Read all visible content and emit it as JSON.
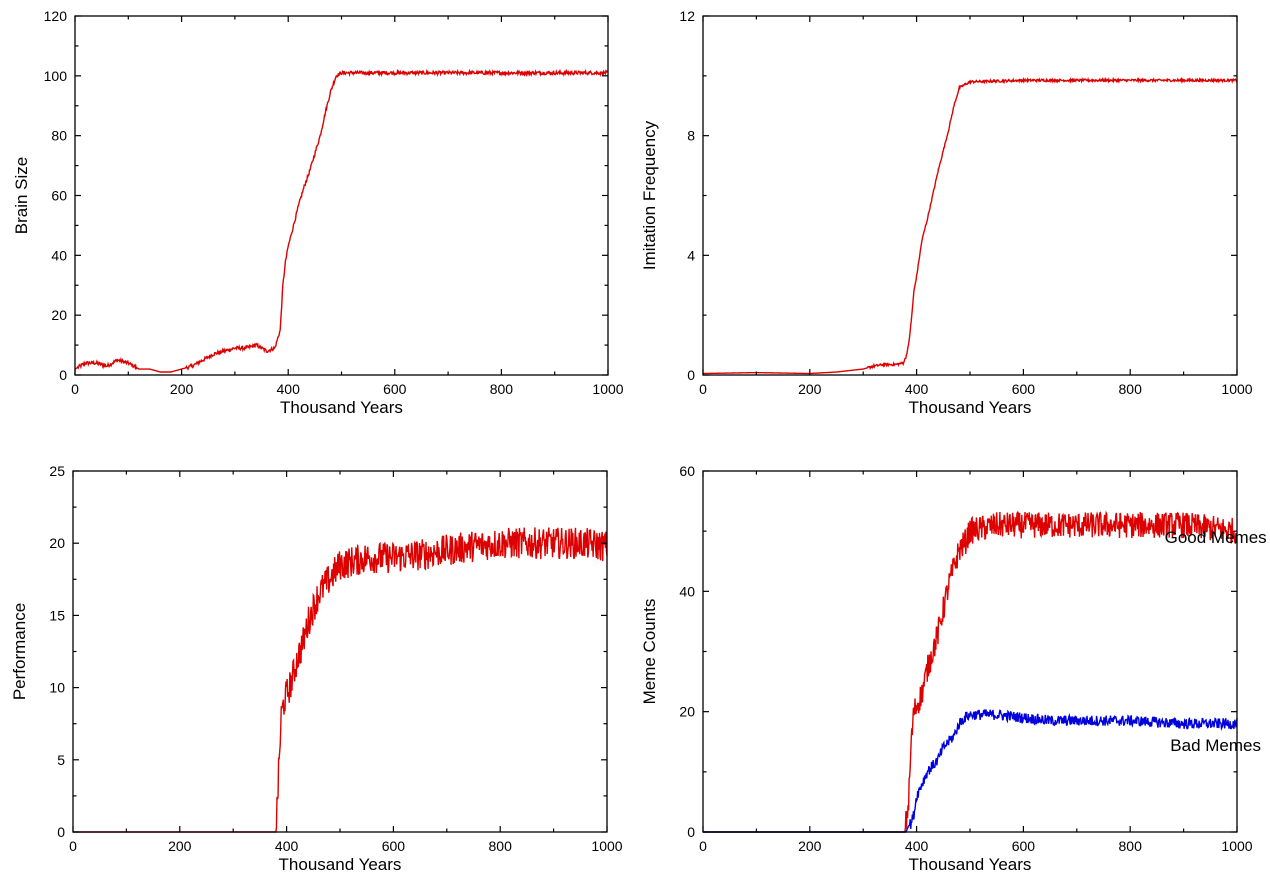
{
  "chart_data": [
    {
      "type": "line",
      "xlabel": "Thousand Years",
      "ylabel": "Brain Size",
      "xlim": [
        0,
        1000
      ],
      "ylim": [
        0,
        120
      ],
      "xticks": [
        0,
        200,
        400,
        600,
        800,
        1000
      ],
      "yticks": [
        0,
        20,
        40,
        60,
        80,
        100,
        120
      ],
      "grid": false,
      "series": [
        {
          "color": "#dd0000",
          "noise": 0.6,
          "x": [
            0,
            20,
            40,
            60,
            80,
            100,
            120,
            140,
            160,
            180,
            200,
            220,
            240,
            260,
            280,
            300,
            320,
            340,
            360,
            375,
            385,
            390,
            395,
            400,
            410,
            420,
            430,
            440,
            450,
            460,
            470,
            480,
            490,
            500,
            600,
            700,
            800,
            900,
            1000
          ],
          "y": [
            2,
            4,
            4,
            3,
            5,
            4,
            2,
            2,
            1,
            1,
            2,
            3,
            5,
            7,
            8,
            9,
            9,
            10,
            8,
            9,
            15,
            30,
            38,
            43,
            50,
            57,
            63,
            68,
            74,
            80,
            88,
            95,
            100,
            101,
            101,
            101,
            101,
            101,
            101
          ]
        }
      ]
    },
    {
      "type": "line",
      "xlabel": "Thousand Years",
      "ylabel": "Imitation Frequency",
      "xlim": [
        0,
        1000
      ],
      "ylim": [
        0,
        12
      ],
      "xticks": [
        0,
        200,
        400,
        600,
        800,
        1000
      ],
      "yticks": [
        0,
        4,
        8,
        12
      ],
      "grid": false,
      "series": [
        {
          "color": "#dd0000",
          "noise": 0.04,
          "x": [
            0,
            100,
            200,
            250,
            300,
            320,
            340,
            360,
            375,
            380,
            385,
            390,
            395,
            400,
            410,
            420,
            430,
            440,
            450,
            460,
            470,
            480,
            490,
            500,
            600,
            700,
            800,
            900,
            1000
          ],
          "y": [
            0.05,
            0.08,
            0.05,
            0.1,
            0.2,
            0.3,
            0.35,
            0.35,
            0.4,
            0.6,
            1.0,
            1.8,
            2.8,
            3.3,
            4.5,
            5.2,
            6.0,
            6.8,
            7.5,
            8.2,
            9.0,
            9.6,
            9.7,
            9.8,
            9.85,
            9.85,
            9.85,
            9.85,
            9.85
          ]
        }
      ]
    },
    {
      "type": "line",
      "xlabel": "Thousand Years",
      "ylabel": "Performance",
      "xlim": [
        0,
        1000
      ],
      "ylim": [
        0,
        25
      ],
      "xticks": [
        0,
        200,
        400,
        600,
        800,
        1000
      ],
      "yticks": [
        0,
        5,
        10,
        15,
        20,
        25
      ],
      "grid": false,
      "series": [
        {
          "color": "#dd0000",
          "noise": 1.1,
          "x": [
            0,
            375,
            380,
            385,
            390,
            395,
            400,
            410,
            420,
            430,
            440,
            450,
            460,
            470,
            480,
            490,
            500,
            550,
            600,
            650,
            700,
            750,
            800,
            850,
            900,
            950,
            1000
          ],
          "y": [
            0,
            0,
            0,
            4,
            8,
            9,
            9.5,
            10.5,
            12,
            13,
            14.5,
            15.5,
            16.5,
            17,
            17.5,
            18,
            18.5,
            19,
            19,
            19.2,
            19.5,
            19.8,
            20,
            20,
            20,
            20,
            19.8
          ]
        }
      ]
    },
    {
      "type": "line",
      "xlabel": "Thousand Years",
      "ylabel": "Meme Counts",
      "xlim": [
        0,
        1000
      ],
      "ylim": [
        0,
        60
      ],
      "xticks": [
        0,
        200,
        400,
        600,
        800,
        1000
      ],
      "yticks": [
        0,
        20,
        40,
        60
      ],
      "grid": false,
      "annotations": [
        {
          "text": "Good Memes",
          "x": 960,
          "y": 48
        },
        {
          "text": "Bad Memes",
          "x": 960,
          "y": 13.5
        }
      ],
      "series": [
        {
          "name": "Good Memes",
          "color": "#dd0000",
          "noise": 2.2,
          "x": [
            0,
            378,
            385,
            390,
            395,
            400,
            410,
            420,
            430,
            440,
            450,
            460,
            470,
            480,
            490,
            500,
            550,
            600,
            700,
            800,
            900,
            1000
          ],
          "y": [
            0,
            0,
            5,
            15,
            20,
            21,
            23,
            27,
            30,
            33,
            37,
            41,
            44,
            47,
            48,
            50,
            51,
            51,
            51,
            51,
            51,
            50
          ]
        },
        {
          "name": "Bad Memes",
          "color": "#0000dd",
          "noise": 0.9,
          "x": [
            0,
            380,
            385,
            390,
            395,
            400,
            410,
            420,
            430,
            440,
            450,
            460,
            470,
            480,
            490,
            500,
            550,
            600,
            650,
            700,
            800,
            900,
            1000
          ],
          "y": [
            0,
            0,
            1,
            1.5,
            3,
            6,
            8,
            10,
            11,
            12,
            14,
            15,
            16,
            18,
            19,
            19.5,
            19.5,
            19,
            18.5,
            18.5,
            18.5,
            18,
            18
          ]
        }
      ]
    }
  ]
}
